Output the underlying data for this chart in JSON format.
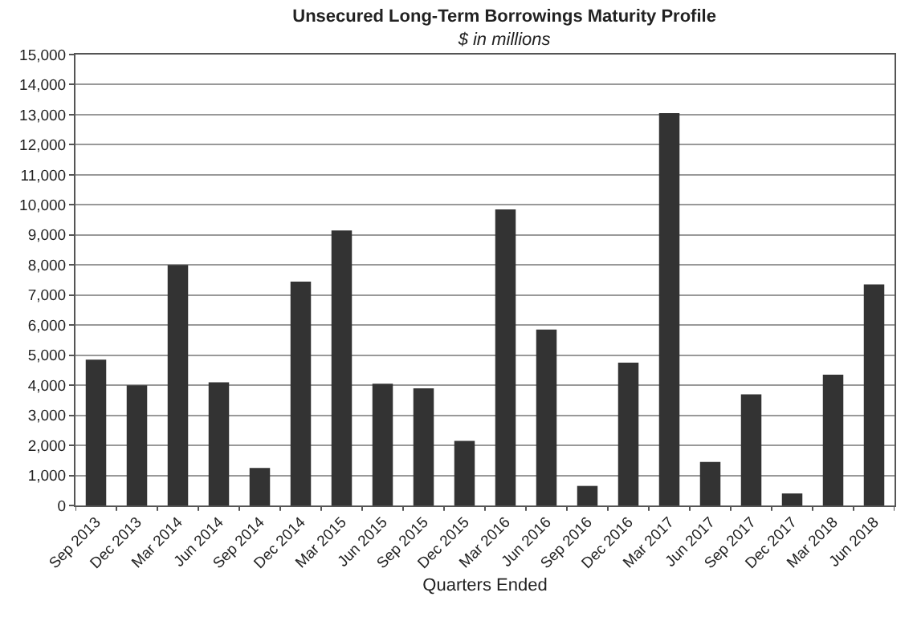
{
  "chart_data": {
    "type": "bar",
    "title": "Unsecured Long-Term Borrowings Maturity Profile",
    "subtitle": "$ in millions",
    "xlabel": "Quarters Ended",
    "categories": [
      "Sep 2013",
      "Dec 2013",
      "Mar 2014",
      "Jun 2014",
      "Sep 2014",
      "Dec 2014",
      "Mar 2015",
      "Jun 2015",
      "Sep 2015",
      "Dec 2015",
      "Mar 2016",
      "Jun 2016",
      "Sep 2016",
      "Dec 2016",
      "Mar 2017",
      "Jun 2017",
      "Sep 2017",
      "Dec 2017",
      "Mar 2018",
      "Jun 2018"
    ],
    "values": [
      4850,
      4000,
      8000,
      4100,
      1250,
      7450,
      9150,
      4050,
      3900,
      2150,
      9850,
      5850,
      650,
      4750,
      13050,
      1450,
      3700,
      400,
      4350,
      7350
    ],
    "color": "#333333",
    "ylim": [
      0,
      15000
    ],
    "yticks": [
      {
        "value": 0,
        "label": "0"
      },
      {
        "value": 1000,
        "label": "1,000"
      },
      {
        "value": 2000,
        "label": "2,000"
      },
      {
        "value": 3000,
        "label": "3,000"
      },
      {
        "value": 4000,
        "label": "4,000"
      },
      {
        "value": 5000,
        "label": "5,000"
      },
      {
        "value": 6000,
        "label": "6,000"
      },
      {
        "value": 7000,
        "label": "7,000"
      },
      {
        "value": 8000,
        "label": "8,000"
      },
      {
        "value": 9000,
        "label": "9,000"
      },
      {
        "value": 10000,
        "label": "10,000"
      },
      {
        "value": 11000,
        "label": "11,000"
      },
      {
        "value": 12000,
        "label": "12,000"
      },
      {
        "value": 13000,
        "label": "13,000"
      },
      {
        "value": 14000,
        "label": "14,000"
      },
      {
        "value": 15000,
        "label": "15,000"
      }
    ],
    "grid": "y"
  }
}
